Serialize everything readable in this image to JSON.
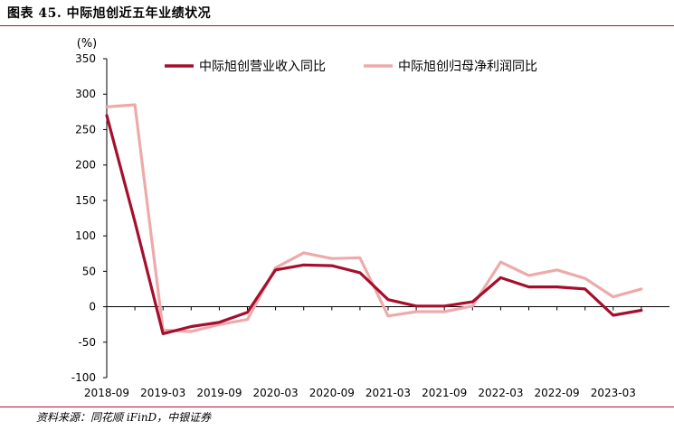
{
  "title": "图表 45. 中际旭创近五年业绩状况",
  "source": "资料来源：同花顺 iFinD，中银证券",
  "chart_data": {
    "type": "line",
    "ylabel": "(%)",
    "ylim": [
      -100,
      350
    ],
    "yticks": [
      -100,
      -50,
      0,
      50,
      100,
      150,
      200,
      250,
      300,
      350
    ],
    "x": [
      "2018-09",
      "2018-12",
      "2019-03",
      "2019-06",
      "2019-09",
      "2019-12",
      "2020-03",
      "2020-06",
      "2020-09",
      "2020-12",
      "2021-03",
      "2021-06",
      "2021-09",
      "2021-12",
      "2022-03",
      "2022-06",
      "2022-09",
      "2022-12",
      "2023-03",
      "2023-06"
    ],
    "xtick_labels": [
      "2018-09",
      "2019-03",
      "2019-09",
      "2020-03",
      "2020-09",
      "2021-03",
      "2021-09",
      "2022-03",
      "2022-09",
      "2023-03"
    ],
    "legend_position": "top",
    "grid": false,
    "series": [
      {
        "name": "中际旭创营业收入同比",
        "color": "#a50f2d",
        "values": [
          270,
          120,
          -38,
          -28,
          -22,
          -8,
          52,
          59,
          58,
          48,
          10,
          1,
          1,
          7,
          41,
          28,
          28,
          25,
          -12,
          -5
        ]
      },
      {
        "name": "中际旭创归母净利润同比",
        "color": "#eeaaaa",
        "values": [
          282,
          285,
          -33,
          -35,
          -25,
          -18,
          55,
          76,
          68,
          69,
          -13,
          -7,
          -7,
          1,
          63,
          44,
          52,
          40,
          14,
          25
        ]
      }
    ]
  }
}
